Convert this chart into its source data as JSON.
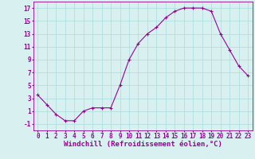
{
  "x": [
    0,
    1,
    2,
    3,
    4,
    5,
    6,
    7,
    8,
    9,
    10,
    11,
    12,
    13,
    14,
    15,
    16,
    17,
    18,
    19,
    20,
    21,
    22,
    23
  ],
  "y": [
    3.5,
    2.0,
    0.5,
    -0.5,
    -0.5,
    1.0,
    1.5,
    1.5,
    1.5,
    5.0,
    9.0,
    11.5,
    13.0,
    14.0,
    15.5,
    16.5,
    17.0,
    17.0,
    17.0,
    16.5,
    13.0,
    10.5,
    8.0,
    6.5
  ],
  "line_color": "#990099",
  "marker": "+",
  "xlabel": "Windchill (Refroidissement éolien,°C)",
  "xlim": [
    -0.5,
    23.5
  ],
  "ylim": [
    -2,
    18
  ],
  "xticks": [
    0,
    1,
    2,
    3,
    4,
    5,
    6,
    7,
    8,
    9,
    10,
    11,
    12,
    13,
    14,
    15,
    16,
    17,
    18,
    19,
    20,
    21,
    22,
    23
  ],
  "yticks": [
    -1,
    1,
    3,
    5,
    7,
    9,
    11,
    13,
    15,
    17
  ],
  "bg_color": "#d8f0f0",
  "grid_color": "#aadddd",
  "line_width": 0.8,
  "xlabel_color": "#990099",
  "tick_color": "#990099",
  "xlabel_fontsize": 6.5,
  "tick_fontsize": 5.5,
  "marker_size": 3,
  "marker_edge_width": 0.8
}
